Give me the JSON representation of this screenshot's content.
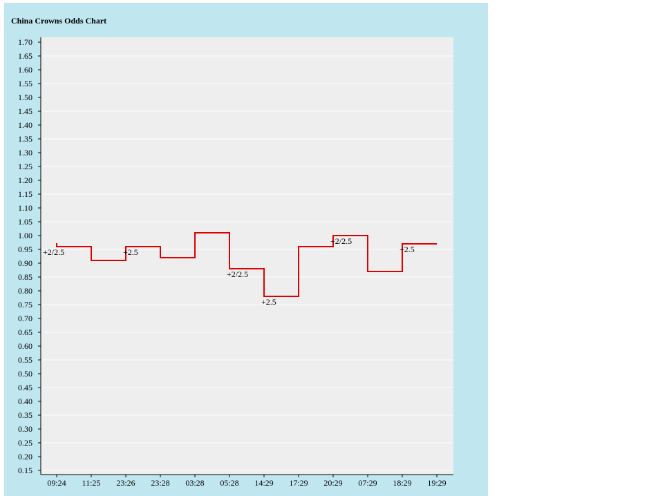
{
  "chart_data": {
    "type": "line",
    "title": "China Crowns Odds Chart",
    "xlabel": "",
    "ylabel": "",
    "ylim": [
      0.15,
      1.7
    ],
    "grid": true,
    "y_ticks": [
      "1.70",
      "1.65",
      "1.60",
      "1.55",
      "1.50",
      "1.45",
      "1.40",
      "1.35",
      "1.30",
      "1.25",
      "1.20",
      "1.15",
      "1.10",
      "1.05",
      "1.00",
      "0.95",
      "0.90",
      "0.85",
      "0.80",
      "0.75",
      "0.70",
      "0.65",
      "0.60",
      "0.55",
      "0.50",
      "0.45",
      "0.40",
      "0.35",
      "0.30",
      "0.25",
      "0.20",
      "0.15"
    ],
    "x": [
      "09:24",
      "11:25",
      "23:26",
      "23:28",
      "03:28",
      "05:28",
      "14:29",
      "17:29",
      "20:29",
      "07:29",
      "18:29",
      "19:29"
    ],
    "series": [
      {
        "values": [
          0.96,
          0.91,
          0.96,
          0.92,
          1.01,
          0.88,
          0.78,
          0.96,
          1.0,
          0.87,
          0.97,
          0.97
        ],
        "color": "#e00000",
        "step": true
      }
    ],
    "annotations": [
      {
        "index": 0,
        "text": "+2/2.5"
      },
      {
        "index": 2,
        "text": "+2.5"
      },
      {
        "index": 5,
        "text": "+2/2.5"
      },
      {
        "index": 6,
        "text": "+2.5"
      },
      {
        "index": 8,
        "text": "+2/2.5"
      },
      {
        "index": 10,
        "text": "+2.5"
      }
    ]
  }
}
